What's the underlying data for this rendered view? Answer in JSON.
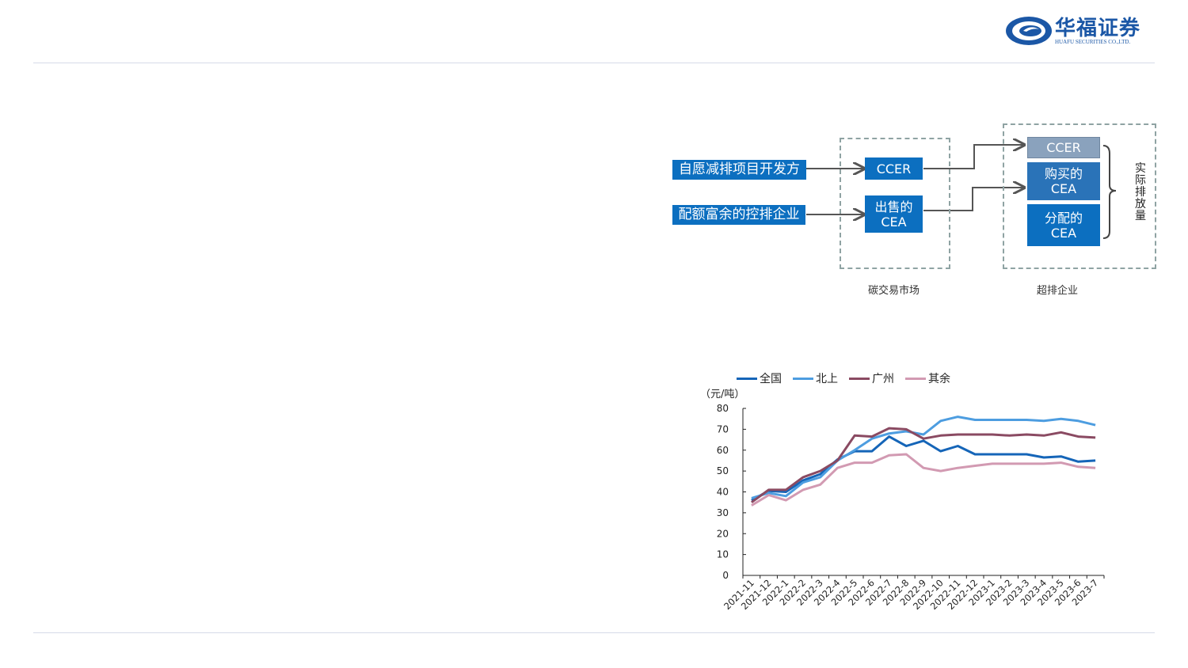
{
  "brand": {
    "name_cn": "华福证券",
    "name_en": "HUAFU SECURITIES CO.,LTD.",
    "color": "#1b57a6"
  },
  "diagram": {
    "sources": [
      "自愿减排项目开发方",
      "配额富余的控排企业"
    ],
    "market_items": [
      "CCER",
      "出售的\nCEA"
    ],
    "company_items": [
      "CCER",
      "购买的\nCEA",
      "分配的\nCEA"
    ],
    "bracket_label": "实际排放量",
    "market_caption": "碳交易市场",
    "company_caption": "超排企业"
  },
  "chart_data": {
    "type": "line",
    "unit_label": "（元/吨）",
    "x": [
      "2021-11",
      "2021-12",
      "2022-1",
      "2022-2",
      "2022-3",
      "2022-4",
      "2022-5",
      "2022-6",
      "2022-7",
      "2022-8",
      "2022-9",
      "2022-10",
      "2022-11",
      "2022-12",
      "2023-1",
      "2023-2",
      "2023-3",
      "2023-4",
      "2023-5",
      "2023-6",
      "2023-7"
    ],
    "ylim": [
      0,
      80
    ],
    "yticks": [
      0,
      10,
      20,
      30,
      40,
      50,
      60,
      70,
      80
    ],
    "series": [
      {
        "name": "全国",
        "color": "#1565b8",
        "values": [
          36.0,
          40.5,
          40.0,
          45.5,
          48.5,
          55.5,
          59.5,
          59.5,
          66.5,
          62.0,
          64.5,
          59.5,
          62.0,
          58.0,
          58.0,
          58.0,
          58.0,
          56.5,
          57.0,
          54.5,
          55.0
        ]
      },
      {
        "name": "北上",
        "color": "#4d9de0",
        "values": [
          37.0,
          39.5,
          38.0,
          44.5,
          47.0,
          55.0,
          60.0,
          65.5,
          68.0,
          69.0,
          67.5,
          74.0,
          76.0,
          74.5,
          74.5,
          74.5,
          74.5,
          74.0,
          75.0,
          74.0,
          72.0
        ]
      },
      {
        "name": "广州",
        "color": "#8a4a62",
        "values": [
          35.0,
          41.0,
          41.0,
          47.0,
          50.0,
          55.0,
          67.0,
          66.5,
          70.5,
          70.0,
          65.5,
          67.0,
          67.5,
          67.5,
          67.5,
          67.0,
          67.5,
          67.0,
          68.5,
          66.5,
          66.0
        ]
      },
      {
        "name": "其余",
        "color": "#d29ab2",
        "values": [
          33.5,
          38.5,
          36.0,
          41.0,
          43.5,
          51.5,
          54.0,
          54.0,
          57.5,
          58.0,
          51.5,
          50.0,
          51.5,
          52.5,
          53.5,
          53.5,
          53.5,
          53.5,
          54.0,
          52.0,
          51.5
        ]
      }
    ]
  }
}
